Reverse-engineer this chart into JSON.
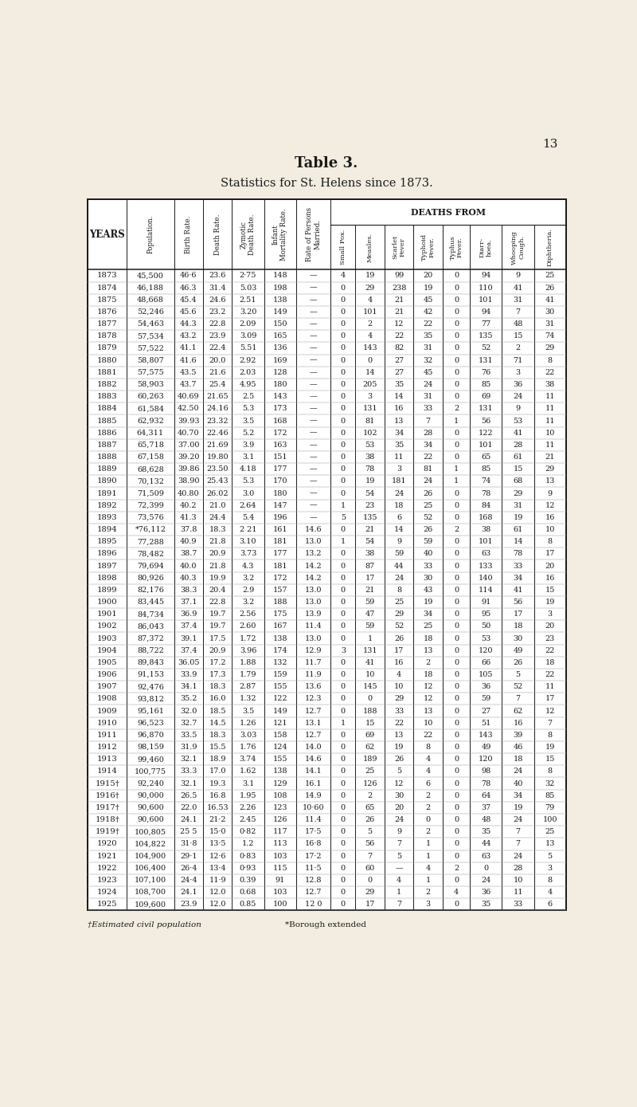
{
  "title": "Table 3.",
  "subtitle": "Statistics for St. Helens since 1873.",
  "bg_color": "#f2ede0",
  "footnote1": "†Estimated civil population",
  "footnote2": "*Borough extended",
  "columns": [
    "YEARS",
    "Population.",
    "Birth Rate.",
    "Death Rate.",
    "Zymotic\nDeath Rate.",
    "Infant\nMortality Rate.",
    "Rate of Persons\nMarried.",
    "Small Pox.",
    "Measles.",
    "Scarlet\nFever",
    "Typhoid\nFever.",
    "Typhus\nFever.",
    "Diarr-\nhoea.",
    "Whooping\nCough.",
    "Diphtheria."
  ],
  "rows": [
    [
      "1873",
      "45,500",
      "46·6",
      "23.6",
      "2·75",
      "148",
      "—",
      "4",
      "19",
      "99",
      "20",
      "0",
      "94",
      "9",
      "25"
    ],
    [
      "1874",
      "46,188",
      "46.3",
      "31.4",
      "5.03",
      "198",
      "—",
      "0",
      "29",
      "238",
      "19",
      "0",
      "110",
      "41",
      "26"
    ],
    [
      "1875",
      "48,668",
      "45.4",
      "24.6",
      "2.51",
      "138",
      "—",
      "0",
      "4",
      "21",
      "45",
      "0",
      "101",
      "31",
      "41"
    ],
    [
      "1876",
      "52,246",
      "45.6",
      "23.2",
      "3.20",
      "149",
      "—",
      "0",
      "101",
      "21",
      "42",
      "0",
      "94",
      "7",
      "30"
    ],
    [
      "1877",
      "54,463",
      "44.3",
      "22.8",
      "2.09",
      "150",
      "—",
      "0",
      "2",
      "12",
      "22",
      "0",
      "77",
      "48",
      "31"
    ],
    [
      "1878",
      "57,534",
      "43.2",
      "23.9",
      "3.09",
      "165",
      "—",
      "0",
      "4",
      "22",
      "35",
      "0",
      "135",
      "15",
      "74"
    ],
    [
      "1879",
      "57,522",
      "41.1",
      "22.4",
      "5.51",
      "136",
      "—",
      "0",
      "143",
      "82",
      "31",
      "0",
      "52",
      "2",
      "29"
    ],
    [
      "1880",
      "58,807",
      "41.6",
      "20.0",
      "2.92",
      "169",
      "—",
      "0",
      "0",
      "27",
      "32",
      "0",
      "131",
      "71",
      "8"
    ],
    [
      "1881",
      "57,575",
      "43.5",
      "21.6",
      "2.03",
      "128",
      "—",
      "0",
      "14",
      "27",
      "45",
      "0",
      "76",
      "3",
      "22"
    ],
    [
      "1882",
      "58,903",
      "43.7",
      "25.4",
      "4.95",
      "180",
      "—",
      "0",
      "205",
      "35",
      "24",
      "0",
      "85",
      "36",
      "38"
    ],
    [
      "1883",
      "60,263",
      "40.69",
      "21.65",
      "2.5",
      "143",
      "—",
      "0",
      "3",
      "14",
      "31",
      "0",
      "69",
      "24",
      "11"
    ],
    [
      "1884",
      "61,584",
      "42.50",
      "24.16",
      "5.3",
      "173",
      "—",
      "0",
      "131",
      "16",
      "33",
      "2",
      "131",
      "9",
      "11"
    ],
    [
      "1885",
      "62,932",
      "39.93",
      "23.32",
      "3.5",
      "168",
      "—",
      "0",
      "81",
      "13",
      "7",
      "1",
      "56",
      "53",
      "11"
    ],
    [
      "1886",
      "64,311",
      "40.70",
      "22.46",
      "5.2",
      "172",
      "—",
      "0",
      "102",
      "34",
      "28",
      "0",
      "122",
      "41",
      "10"
    ],
    [
      "1887",
      "65,718",
      "37.00",
      "21.69",
      "3.9",
      "163",
      "—",
      "0",
      "53",
      "35",
      "34",
      "0",
      "101",
      "28",
      "11"
    ],
    [
      "1888",
      "67,158",
      "39.20",
      "19.80",
      "3.1",
      "151",
      "—",
      "0",
      "38",
      "11",
      "22",
      "0",
      "65",
      "61",
      "21"
    ],
    [
      "1889",
      "68,628",
      "39.86",
      "23.50",
      "4.18",
      "177",
      "—",
      "0",
      "78",
      "3",
      "81",
      "1",
      "85",
      "15",
      "29"
    ],
    [
      "1890",
      "70,132",
      "38.90",
      "25.43",
      "5.3",
      "170",
      "—",
      "0",
      "19",
      "181",
      "24",
      "1",
      "74",
      "68",
      "13"
    ],
    [
      "1891",
      "71,509",
      "40.80",
      "26.02",
      "3.0",
      "180",
      "—",
      "0",
      "54",
      "24",
      "26",
      "0",
      "78",
      "29",
      "9"
    ],
    [
      "1892",
      "72,399",
      "40.2",
      "21.0",
      "2.64",
      "147",
      "—",
      "1",
      "23",
      "18",
      "25",
      "0",
      "84",
      "31",
      "12"
    ],
    [
      "1893",
      "73,576",
      "41.3",
      "24.4",
      "5.4",
      "196",
      "—",
      "5",
      "135",
      "6",
      "52",
      "0",
      "168",
      "19",
      "16"
    ],
    [
      "1894",
      "*76,112",
      "37.8",
      "18.3",
      "2 21",
      "161",
      "14.6",
      "0",
      "21",
      "14",
      "26",
      "2",
      "38",
      "61",
      "10"
    ],
    [
      "1895",
      "77,288",
      "40.9",
      "21.8",
      "3.10",
      "181",
      "13.0",
      "1",
      "54",
      "9",
      "59",
      "0",
      "101",
      "14",
      "8"
    ],
    [
      "1896",
      "78,482",
      "38.7",
      "20.9",
      "3.73",
      "177",
      "13.2",
      "0",
      "38",
      "59",
      "40",
      "0",
      "63",
      "78",
      "17"
    ],
    [
      "1897",
      "79,694",
      "40.0",
      "21.8",
      "4.3",
      "181",
      "14.2",
      "0",
      "87",
      "44",
      "33",
      "0",
      "133",
      "33",
      "20"
    ],
    [
      "1898",
      "80,926",
      "40.3",
      "19.9",
      "3.2",
      "172",
      "14.2",
      "0",
      "17",
      "24",
      "30",
      "0",
      "140",
      "34",
      "16"
    ],
    [
      "1899",
      "82,176",
      "38.3",
      "20.4",
      "2.9",
      "157",
      "13.0",
      "0",
      "21",
      "8",
      "43",
      "0",
      "114",
      "41",
      "15"
    ],
    [
      "1900",
      "83,445",
      "37.1",
      "22.8",
      "3.2",
      "188",
      "13.0",
      "0",
      "59",
      "25",
      "19",
      "0",
      "91",
      "56",
      "19"
    ],
    [
      "1901",
      "84,734",
      "36.9",
      "19.7",
      "2.56",
      "175",
      "13.9",
      "0",
      "47",
      "29",
      "34",
      "0",
      "95",
      "17",
      "3"
    ],
    [
      "1902",
      "86,043",
      "37.4",
      "19.7",
      "2.60",
      "167",
      "11.4",
      "0",
      "59",
      "52",
      "25",
      "0",
      "50",
      "18",
      "20"
    ],
    [
      "1903",
      "87,372",
      "39.1",
      "17.5",
      "1.72",
      "138",
      "13.0",
      "0",
      "1",
      "26",
      "18",
      "0",
      "53",
      "30",
      "23"
    ],
    [
      "1904",
      "88,722",
      "37.4",
      "20.9",
      "3.96",
      "174",
      "12.9",
      "3",
      "131",
      "17",
      "13",
      "0",
      "120",
      "49",
      "22"
    ],
    [
      "1905",
      "89,843",
      "36.05",
      "17.2",
      "1.88",
      "132",
      "11.7",
      "0",
      "41",
      "16",
      "2",
      "0",
      "66",
      "26",
      "18"
    ],
    [
      "1906",
      "91,153",
      "33.9",
      "17.3",
      "1.79",
      "159",
      "11.9",
      "0",
      "10",
      "4",
      "18",
      "0",
      "105",
      "5",
      "22"
    ],
    [
      "1907",
      "92,476",
      "34.1",
      "18.3",
      "2.87",
      "155",
      "13.6",
      "0",
      "145",
      "10",
      "12",
      "0",
      "36",
      "52",
      "11"
    ],
    [
      "1908",
      "93,812",
      "35.2",
      "16.0",
      "1.32",
      "122",
      "12.3",
      "0",
      "0",
      "29",
      "12",
      "0",
      "59",
      "7",
      "17"
    ],
    [
      "1909",
      "95,161",
      "32.0",
      "18.5",
      "3.5",
      "149",
      "12.7",
      "0",
      "188",
      "33",
      "13",
      "0",
      "27",
      "62",
      "12"
    ],
    [
      "1910",
      "96,523",
      "32.7",
      "14.5",
      "1.26",
      "121",
      "13.1",
      "1",
      "15",
      "22",
      "10",
      "0",
      "51",
      "16",
      "7"
    ],
    [
      "1911",
      "96,870",
      "33.5",
      "18.3",
      "3.03",
      "158",
      "12.7",
      "0",
      "69",
      "13",
      "22",
      "0",
      "143",
      "39",
      "8"
    ],
    [
      "1912",
      "98,159",
      "31.9",
      "15.5",
      "1.76",
      "124",
      "14.0",
      "0",
      "62",
      "19",
      "8",
      "0",
      "49",
      "46",
      "19"
    ],
    [
      "1913",
      "99,460",
      "32.1",
      "18.9",
      "3.74",
      "155",
      "14.6",
      "0",
      "189",
      "26",
      "4",
      "0",
      "120",
      "18",
      "15"
    ],
    [
      "1914",
      "100,775",
      "33.3",
      "17.0",
      "1.62",
      "138",
      "14.1",
      "0",
      "25",
      "5",
      "4",
      "0",
      "98",
      "24",
      "8"
    ],
    [
      "1915†",
      "92,240",
      "32.1",
      "19.3",
      "3.1",
      "129",
      "16.1",
      "0",
      "126",
      "12",
      "6",
      "0",
      "78",
      "40",
      "32"
    ],
    [
      "1916†",
      "90,000",
      "26.5",
      "16.8",
      "1.95",
      "108",
      "14.9",
      "0",
      "2",
      "30",
      "2",
      "0",
      "64",
      "34",
      "85"
    ],
    [
      "1917†",
      "90,600",
      "22.0",
      "16.53",
      "2.26",
      "123",
      "10·60",
      "0",
      "65",
      "20",
      "2",
      "0",
      "37",
      "19",
      "79"
    ],
    [
      "1918†",
      "90,600",
      "24.1",
      "21·2",
      "2.45",
      "126",
      "11.4",
      "0",
      "26",
      "24",
      "0",
      "0",
      "48",
      "24",
      "100"
    ],
    [
      "1919†",
      "100,805",
      "25 5",
      "15·0",
      "0·82",
      "117",
      "17·5",
      "0",
      "5",
      "9",
      "2",
      "0",
      "35",
      "7",
      "25"
    ],
    [
      "1920",
      "104,822",
      "31·8",
      "13·5",
      "1.2",
      "113",
      "16·8",
      "0",
      "56",
      "7",
      "1",
      "0",
      "44",
      "7",
      "13"
    ],
    [
      "1921",
      "104,900",
      "29·1",
      "12·6",
      "0·83",
      "103",
      "17·2",
      "0",
      "7",
      "5",
      "1",
      "0",
      "63",
      "24",
      "5"
    ],
    [
      "1922",
      "106,400",
      "26·4",
      "13·4",
      "0·93",
      "115",
      "11·5",
      "0",
      "60",
      "—",
      "4",
      "2",
      "0",
      "28",
      "3"
    ],
    [
      "1923",
      "107,100",
      "24·4",
      "11·9",
      "0.39",
      "91",
      "12.8",
      "0",
      "0",
      "4",
      "1",
      "0",
      "24",
      "10",
      "8"
    ],
    [
      "1924",
      "108,700",
      "24.1",
      "12.0",
      "0.68",
      "103",
      "12.7",
      "0",
      "29",
      "1",
      "2",
      "4",
      "36",
      "11",
      "4"
    ],
    [
      "1925",
      "109,600",
      "23.9",
      "12.0",
      "0.85",
      "100",
      "12 0",
      "0",
      "17",
      "7",
      "3",
      "0",
      "35",
      "33",
      "6"
    ]
  ]
}
